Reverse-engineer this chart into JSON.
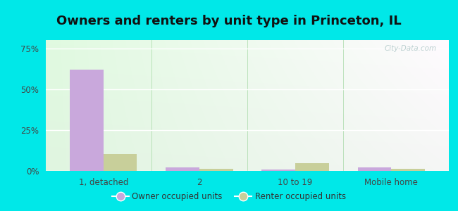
{
  "title": "Owners and renters by unit type in Princeton, IL",
  "categories": [
    "1, detached",
    "2",
    "10 to 19",
    "Mobile home"
  ],
  "owner_values": [
    62.0,
    2.2,
    1.0,
    2.0
  ],
  "renter_values": [
    10.5,
    1.2,
    4.8,
    1.5
  ],
  "owner_color": "#c9a8dc",
  "renter_color": "#c8cf9a",
  "yticks": [
    0,
    25,
    50,
    75
  ],
  "ylabels": [
    "0%",
    "25%",
    "50%",
    "75%"
  ],
  "ymax": 80,
  "fig_bg_color": "#00e8e8",
  "plot_bg_color": "#edf8ed",
  "legend_owner": "Owner occupied units",
  "legend_renter": "Renter occupied units",
  "bar_width": 0.35,
  "title_fontsize": 13,
  "watermark": "City-Data.com"
}
